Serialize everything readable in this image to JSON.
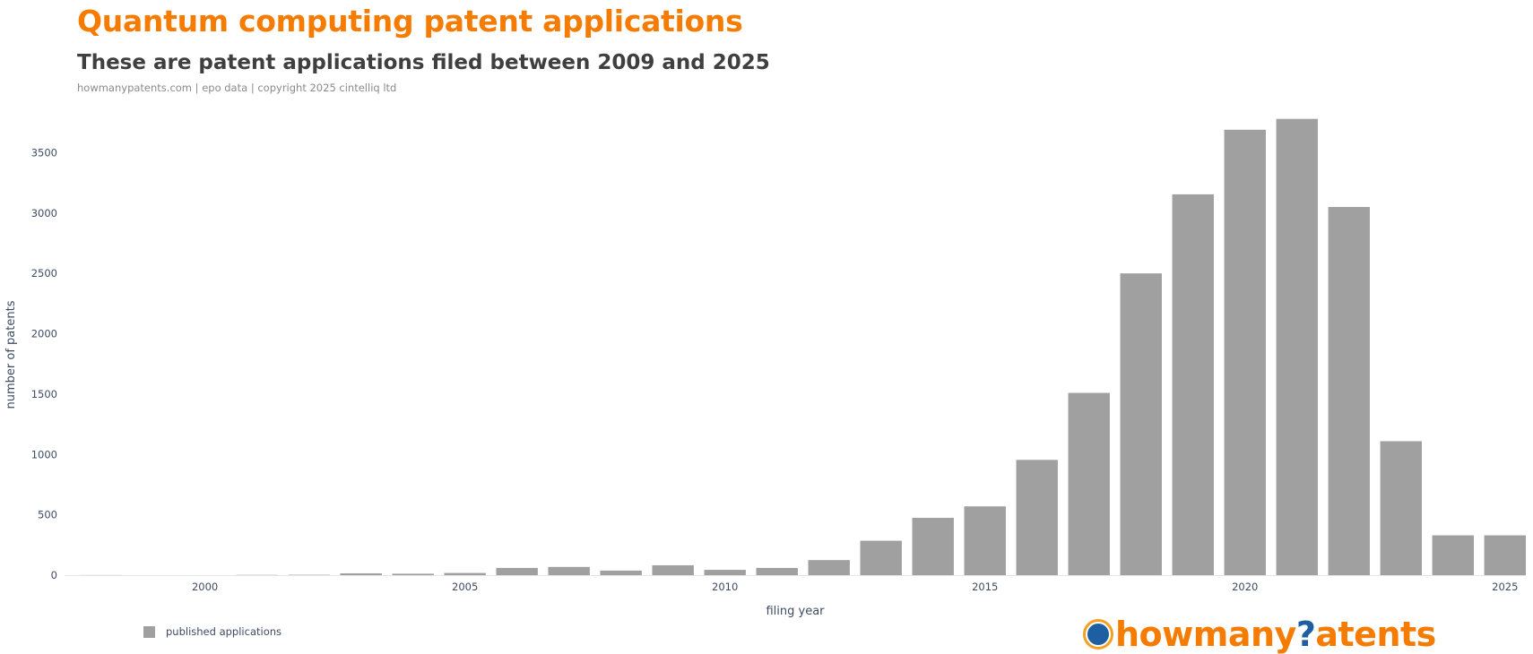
{
  "header": {
    "title": "Quantum computing patent applications",
    "subtitle": "These are patent applications filed between 2009 and 2025",
    "source": "howmanypatents.com | epo data | copyright 2025 cintelliq ltd"
  },
  "legend": {
    "label": "published applications"
  },
  "logo": {
    "part1": "howmany",
    "part2": "?",
    "part3": "atents"
  },
  "colors": {
    "bar": "#a0a0a0",
    "title": "#f57c00",
    "logo_blue": "#1d5fa0"
  },
  "chart_data": {
    "type": "bar",
    "title": "Quantum computing patent applications",
    "subtitle": "These are patent applications filed between 2009 and 2025",
    "xlabel": "filing year",
    "ylabel": "number of patents",
    "x": [
      1998,
      2001,
      2002,
      2003,
      2004,
      2005,
      2006,
      2007,
      2008,
      2009,
      2010,
      2011,
      2012,
      2013,
      2014,
      2015,
      2016,
      2017,
      2018,
      2019,
      2020,
      2021,
      2022,
      2023,
      2024,
      2025
    ],
    "series": [
      {
        "name": "published applications",
        "values": [
          1,
          2,
          3,
          15,
          12,
          18,
          60,
          68,
          38,
          82,
          44,
          60,
          125,
          285,
          475,
          570,
          955,
          1510,
          2500,
          3155,
          3690,
          3780,
          3050,
          1110,
          330,
          330
        ]
      }
    ],
    "xticks": [
      2000,
      2005,
      2010,
      2015,
      2020,
      2025
    ],
    "yticks": [
      0,
      500,
      1000,
      1500,
      2000,
      2500,
      3000,
      3500
    ],
    "xlim": [
      1997.3,
      2025.4
    ],
    "ylim": [
      0,
      3800
    ],
    "grid": false,
    "legend_position": "bottom-left"
  }
}
